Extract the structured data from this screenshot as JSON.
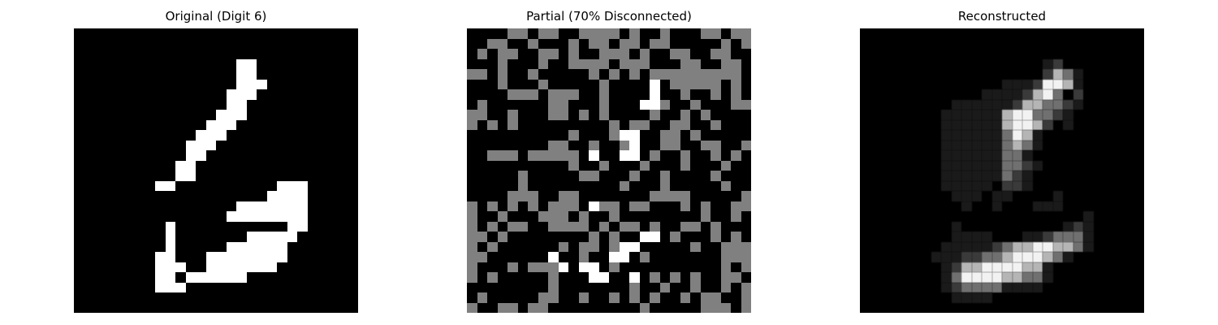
{
  "panels": [
    {
      "key": "original",
      "title": "Original (Digit 6)"
    },
    {
      "key": "partial",
      "title": "Partial (70% Disconnected)"
    },
    {
      "key": "reconstructed",
      "title": "Reconstructed"
    }
  ],
  "colors": {
    "background": "#000000",
    "on": "#ffffff",
    "disconnected": "#808080"
  },
  "images": {
    "original": [
      "............................",
      "............................",
      "............................",
      "................##..........",
      "................##..........",
      "................###.........",
      "...............###..........",
      "...............##...........",
      "..............###...........",
      ".............###............",
      "............###.............",
      "...........###..............",
      "...........##...............",
      "..........##................",
      "..........##................",
      "........##..........###.....",
      "...................####.....",
      "................#######.....",
      "...............########.....",
      ".........#...........##.....",
      ".........#.......#####......",
      ".........#.....######.......",
      "........##...########.......",
      "........###..#######........",
      "........##.######...........",
      "........###.................",
      "............................",
      "............................"
    ],
    "partial": [
      "....gg.gg..gggg.g..g...gg.gg",
      "..gg..g...g.gg.gg.gg.....g.g",
      ".g.gg..gg.g..ggg.g..gg..gg..",
      "...g...g..gggg.ggg...gg..gg.",
      "gg.g..g.....g.g.g.ggggggggg.",
      "...g...g.....g....#.ggggg.g.",
      "....ggg.ggg..g....#..g..g.g.",
      ".g......gg...g...##g..g...gg",
      "gg..g...gg.g.g....g..g.g....",
      "g.g.g.........g.gg..gg..g...",
      "..........g...g##..gg.g.....",
      "........gg..g..g#..gg..gg..g",
      "..ggg.ggggg.#..##.g..g..g.g.",
      "..........g..g...g...g...g..",
      ".....g.....gg...g..g....g...",
      ".....g.........g...g.....g..",
      "....ggg..gg.......gggg.....g",
      "g.g.g.g.ggg.#gg.gg...g.g..gg",
      "g..g...ggg.g..g........g..g.",
      "g.g.gg..gggg.g.gg.g..gg.g...",
      "gg.g........g.g..##.g...g.g.",
      "g.g......g.gg.g##.....g..ggg",
      "gg......#..g..##.g.......ggg",
      "g...g.ggg#.##.g..........g.g",
      "g.g.....g...##..#.g.g.g..gg.",
      "........g.......g..g..g..g.g",
      ".g.....gg..g..g.g.g..g.gg..g",
      "g..gg.gg.........g.....ggg.g"
    ],
    "reconstructed": [
      "............................",
      "............................",
      "............................",
      "..................12........",
      "..................2431......",
      "..............11125541......",
      "............11112453.2......",
      ".........1111112443321......",
      "........1111114553321.......",
      "........11111145542.1.......",
      "........1111113541..........",
      "........1111113431..........",
      "........111111331...........",
      "........1111113321..........",
      "........111111321...........",
      "........11111.221...........",
      ".........111.11....1........",
      "..........1..1...111........",
      "......................1.....",
      ".........1..........121.....",
      ".........1111...1123331.....",
      "........111112344554431.....",
      ".......11122334555431.......",
      "........12445555441.........",
      "........13555544331.........",
      "........1233331111..........",
      ".........1111...............",
      "............................"
    ]
  }
}
